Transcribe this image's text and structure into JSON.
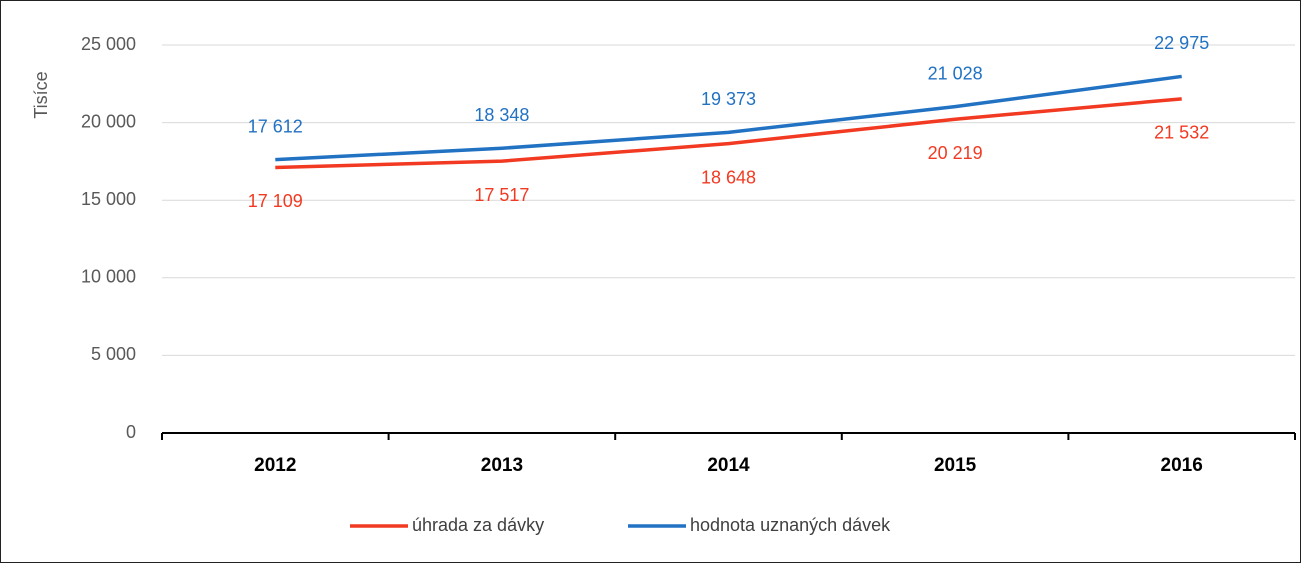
{
  "chart_data": {
    "type": "line",
    "y_label": "Tisíce",
    "categories": [
      "2012",
      "2013",
      "2014",
      "2015",
      "2016"
    ],
    "series": [
      {
        "name": "úhrada za dávky",
        "color": "#f23a22",
        "values": [
          17109,
          17517,
          18648,
          20219,
          21532
        ],
        "value_labels": [
          "17 109",
          "17 517",
          "18 648",
          "20 219",
          "21 532"
        ],
        "label_position": "below"
      },
      {
        "name": "hodnota uznaných dávek",
        "color": "#2272c3",
        "values": [
          17612,
          18348,
          19373,
          21028,
          22975
        ],
        "value_labels": [
          "17 612",
          "18 348",
          "19 373",
          "21 028",
          "22 975"
        ],
        "label_position": "above"
      }
    ],
    "ylim": [
      0,
      25000
    ],
    "yticks": [
      0,
      {
        "value": 5000,
        "label": "5 000"
      },
      {
        "value": 10000,
        "label": "10 000"
      },
      {
        "value": 15000,
        "label": "15 000"
      },
      {
        "value": 20000,
        "label": "20 000"
      },
      {
        "value": 25000,
        "label": "25 000"
      }
    ],
    "grid": true,
    "legend": "bottom"
  }
}
